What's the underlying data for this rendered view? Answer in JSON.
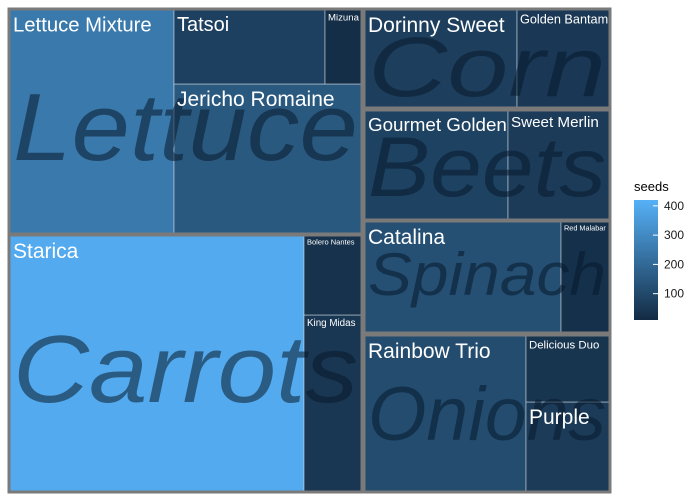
{
  "chart_data": {
    "type": "treemap",
    "colorbar": {
      "title": "seeds",
      "ticks": [
        100,
        200,
        300,
        400
      ],
      "range": [
        10,
        420
      ],
      "low_color": "#132B43",
      "high_color": "#56B1F7"
    },
    "groups": [
      {
        "name": "Lettuce",
        "items": [
          {
            "name": "Lettuce Mixture",
            "seeds": 250
          },
          {
            "name": "Jericho Romaine",
            "seeds": 150
          },
          {
            "name": "Tatsoi",
            "seeds": 75
          },
          {
            "name": "Mizuna",
            "seeds": 20
          }
        ]
      },
      {
        "name": "Carrots",
        "items": [
          {
            "name": "Starica",
            "seeds": 400
          },
          {
            "name": "King Midas",
            "seeds": 45
          },
          {
            "name": "Bolero Nantes",
            "seeds": 30
          }
        ]
      },
      {
        "name": "Corn",
        "items": [
          {
            "name": "Dorinny Sweet",
            "seeds": 70
          },
          {
            "name": "Golden Bantam",
            "seeds": 50
          }
        ]
      },
      {
        "name": "Beets",
        "items": [
          {
            "name": "Gourmet Golden",
            "seeds": 80
          },
          {
            "name": "Sweet Merlin",
            "seeds": 60
          }
        ]
      },
      {
        "name": "Spinach",
        "items": [
          {
            "name": "Catalina",
            "seeds": 120
          },
          {
            "name": "Red Malabar",
            "seeds": 25
          }
        ]
      },
      {
        "name": "Onions",
        "items": [
          {
            "name": "Rainbow Trio",
            "seeds": 110
          },
          {
            "name": "Purple",
            "seeds": 60
          },
          {
            "name": "Delicious Duo",
            "seeds": 40
          }
        ]
      }
    ]
  }
}
